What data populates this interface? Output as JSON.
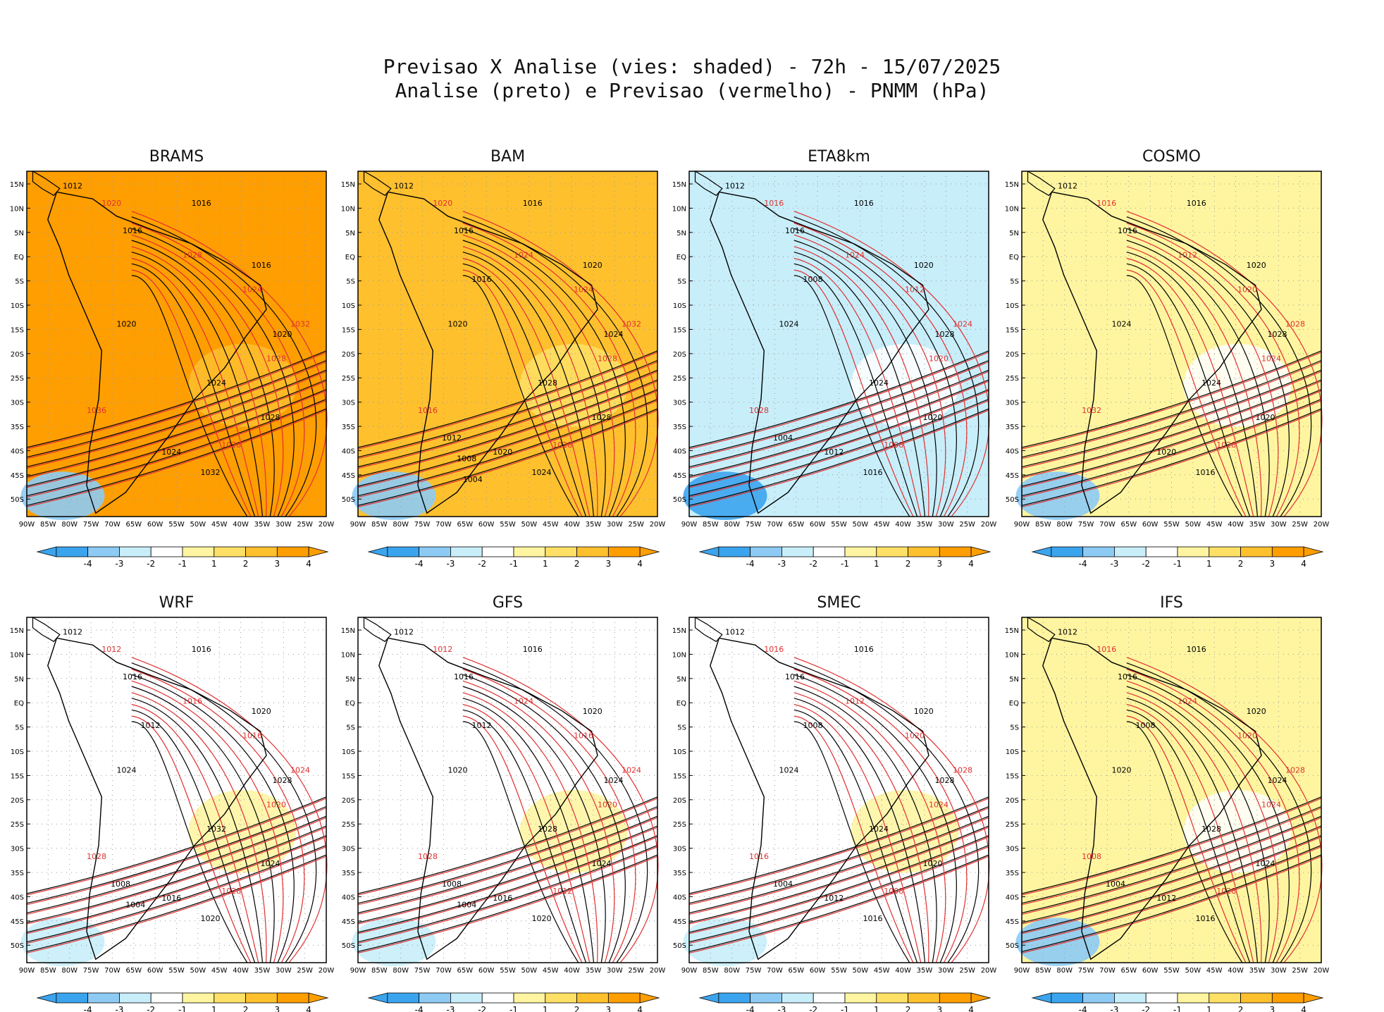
{
  "title_line1": "Previsao X Analise (vies: shaded) - 72h - 15/07/2025",
  "title_line2": "Analise (preto) e Previsao (vermelho) - PNMM (hPa)",
  "x_ticks": [
    "90W",
    "85W",
    "80W",
    "75W",
    "70W",
    "65W",
    "60W",
    "55W",
    "50W",
    "45W",
    "40W",
    "35W",
    "30W",
    "25W",
    "20W"
  ],
  "y_ticks": [
    "15N",
    "10N",
    "5N",
    "EQ",
    "5S",
    "10S",
    "15S",
    "20S",
    "25S",
    "30S",
    "35S",
    "40S",
    "45S",
    "50S"
  ],
  "colorbar": {
    "labels": [
      "-4",
      "-3",
      "-2",
      "-1",
      "1",
      "2",
      "3",
      "4"
    ],
    "colors": [
      "#3ba4ee",
      "#8dcbf5",
      "#c8eefa",
      "#ffffff",
      "#fff5a0",
      "#ffe066",
      "#ffc02e",
      "#ff9e00"
    ]
  },
  "colors": {
    "analysis": "#000000",
    "forecast": "#e03030",
    "land_bg": "#ffffff"
  },
  "chart_data": [
    {
      "type": "heatmap",
      "title": "BRAMS",
      "bias_mean": 3.6,
      "analysis_labels": [
        "1012",
        "1016",
        "1016",
        "1016",
        "1020",
        "1020",
        "1024",
        "1028",
        "1032",
        "1024"
      ],
      "forecast_labels": [
        "1020",
        "1024",
        "1028",
        "1032",
        "1036",
        "1028",
        "1028"
      ]
    },
    {
      "type": "heatmap",
      "title": "BAM",
      "bias_mean": 2.2,
      "analysis_labels": [
        "1012",
        "1016",
        "1016",
        "1020",
        "1020",
        "1024",
        "1028",
        "1028",
        "1024",
        "1020",
        "1016",
        "1012",
        "1008",
        "1004"
      ],
      "forecast_labels": [
        "1020",
        "1024",
        "1028",
        "1032",
        "1016",
        "1024",
        "1028"
      ]
    },
    {
      "type": "heatmap",
      "title": "ETA8km",
      "bias_mean": -1.6,
      "analysis_labels": [
        "1012",
        "1016",
        "1016",
        "1020",
        "1024",
        "1028",
        "1024",
        "1020",
        "1016",
        "1012",
        "1008",
        "1004"
      ],
      "forecast_labels": [
        "1016",
        "1012",
        "1020",
        "1024",
        "1028",
        "1024",
        "1008"
      ]
    },
    {
      "type": "heatmap",
      "title": "COSMO",
      "bias_mean": 0.8,
      "analysis_labels": [
        "1012",
        "1016",
        "1016",
        "1020",
        "1024",
        "1028",
        "1024",
        "1020",
        "1016",
        "1020"
      ],
      "forecast_labels": [
        "1016",
        "1020",
        "1024",
        "1028",
        "1032",
        "1012",
        "1028"
      ]
    },
    {
      "type": "heatmap",
      "title": "WRF",
      "bias_mean": -0.3,
      "analysis_labels": [
        "1012",
        "1016",
        "1016",
        "1020",
        "1024",
        "1028",
        "1032",
        "1024",
        "1020",
        "1016",
        "1012",
        "1008",
        "1004"
      ],
      "forecast_labels": [
        "1012",
        "1016",
        "1020",
        "1024",
        "1028",
        "1016",
        "1028"
      ]
    },
    {
      "type": "heatmap",
      "title": "GFS",
      "bias_mean": -0.4,
      "analysis_labels": [
        "1012",
        "1016",
        "1016",
        "1020",
        "1020",
        "1024",
        "1028",
        "1024",
        "1020",
        "1016",
        "1012",
        "1008",
        "1004"
      ],
      "forecast_labels": [
        "1012",
        "1016",
        "1020",
        "1024",
        "1028",
        "1024",
        "1012"
      ]
    },
    {
      "type": "heatmap",
      "title": "SMEC",
      "bias_mean": -0.2,
      "analysis_labels": [
        "1012",
        "1016",
        "1016",
        "1020",
        "1024",
        "1028",
        "1024",
        "1020",
        "1016",
        "1012",
        "1008",
        "1004"
      ],
      "forecast_labels": [
        "1016",
        "1020",
        "1024",
        "1028",
        "1016",
        "1012",
        "1008"
      ]
    },
    {
      "type": "heatmap",
      "title": "IFS",
      "bias_mean": 0.3,
      "analysis_labels": [
        "1012",
        "1016",
        "1016",
        "1020",
        "1020",
        "1024",
        "1028",
        "1024",
        "1016",
        "1012",
        "1008",
        "1004"
      ],
      "forecast_labels": [
        "1016",
        "1020",
        "1024",
        "1028",
        "1008",
        "1024",
        "1028"
      ]
    }
  ]
}
